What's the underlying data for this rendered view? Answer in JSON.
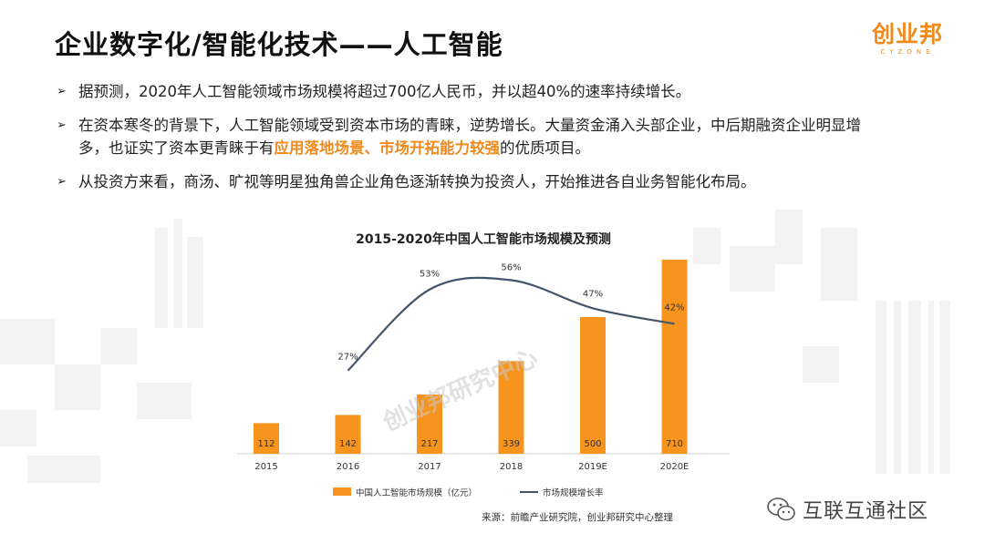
{
  "header": {
    "title": "企业数字化/智能化技术——人工智能",
    "logo_main": "创业邦",
    "logo_sub": "CYZONE"
  },
  "bullets": [
    {
      "text": "据预测，2020年人工智能领域市场规模将超过700亿人民币，并以超40%的速率持续增长。"
    },
    {
      "text_before": "在资本寒冬的背景下，人工智能领域受到资本市场的青睐，逆势增长。大量资金涌入头部企业，中后期融资企业明显增多，也证实了资本更青睐于有",
      "highlight": "应用落地场景、市场开拓能力较强",
      "text_after": "的优质项目。"
    },
    {
      "text": "从投资方来看，商汤、旷视等明星独角兽企业角色逐渐转换为投资人，开始推进各自业务智能化布局。"
    }
  ],
  "chart_data": {
    "type": "bar",
    "title": "2015-2020年中国人工智能市场规模及预测",
    "categories": [
      "2015",
      "2016",
      "2017",
      "2018",
      "2019E",
      "2020E"
    ],
    "series": [
      {
        "name": "中国人工智能市场规模（亿元）",
        "type": "bar",
        "values": [
          112,
          142,
          217,
          339,
          500,
          710
        ],
        "color": "#f7941d"
      },
      {
        "name": "市场规模增长率",
        "type": "line",
        "values": [
          null,
          27,
          53,
          56,
          47,
          42
        ],
        "labels": [
          "",
          "27%",
          "53%",
          "56%",
          "47%",
          "42%"
        ],
        "color": "#44546a"
      }
    ],
    "legend_position": "bottom",
    "grid": false,
    "watermark": "创业邦研究中心"
  },
  "footer": {
    "source": "来源：前瞻产业研究院，创业邦研究中心整理",
    "corner_watermark": "互联互通社区"
  }
}
